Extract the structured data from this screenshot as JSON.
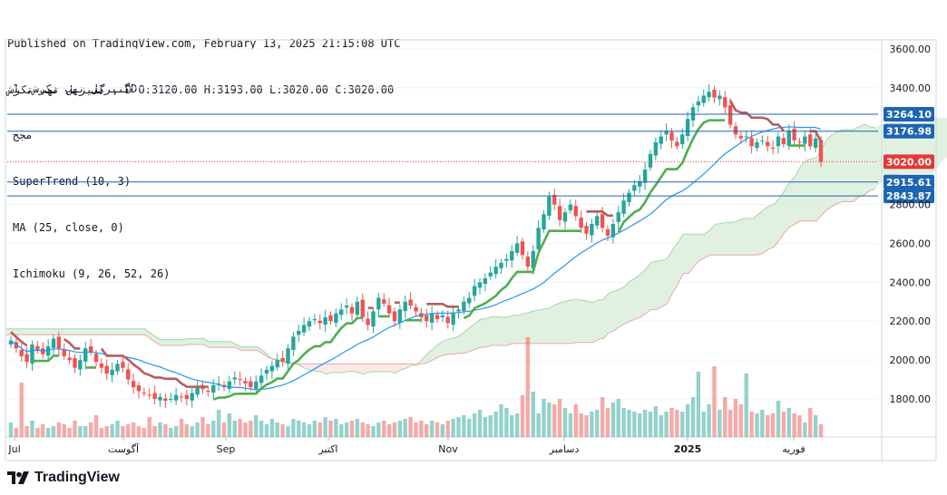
{
  "header": {
    "line1": "Published on TradingView.com, February 13, 2025 21:15:08 UTC",
    "line2": "گنیزیل تهب تکرش , D O:3120.00 H:3193.00 L:3020.00 C:3020.00"
  },
  "legend": {
    "line1": "گنیزیل تهب تکرش, 1D",
    "line2": "مجح",
    "line3": "SuperTrend (10, 3)",
    "line4": "MA (25, close, 0)",
    "line5": "Ichimoku (9, 26, 52, 26)"
  },
  "brand": {
    "name": "TradingView"
  },
  "colors": {
    "up": "#26a69a",
    "down": "#ef5350",
    "ma": "#2196f3",
    "supertrend_up": "#4caf50",
    "supertrend_down": "#b85c5c",
    "cloud_bull": "#c8e6c9",
    "cloud_bear": "#f8d7d5",
    "level": "#1e64b4",
    "price": "#e53935"
  },
  "chart_data": {
    "type": "candlestick",
    "y_ticks": [
      "3600.00",
      "3400.00",
      "2800.00",
      "2600.00",
      "2400.00",
      "2200.00",
      "2000.00",
      "1800.00"
    ],
    "ylim": [
      1600,
      3700
    ],
    "x_labels": [
      "Jul",
      "آگوست",
      "Sep",
      "اکتبر",
      "Nov",
      "دسامبر",
      "2025",
      "فوریه"
    ],
    "levels": [
      {
        "label": "3264.10",
        "value": 3264.1
      },
      {
        "label": "3176.98",
        "value": 3176.98
      },
      {
        "label": "2915.61",
        "value": 2915.61
      },
      {
        "label": "2843.87",
        "value": 2843.87
      }
    ],
    "last_price": {
      "label": "3020.00",
      "value": 3020.0
    },
    "closes": [
      2100,
      2060,
      2020,
      1990,
      2080,
      2050,
      2030,
      2070,
      2110,
      2060,
      2020,
      2000,
      1960,
      2000,
      2060,
      2040,
      1990,
      1960,
      1930,
      1950,
      1980,
      1960,
      1900,
      1860,
      1840,
      1830,
      1820,
      1800,
      1810,
      1790,
      1800,
      1820,
      1810,
      1800,
      1830,
      1860,
      1850,
      1840,
      1870,
      1880,
      1860,
      1890,
      1910,
      1900,
      1880,
      1860,
      1890,
      1920,
      1950,
      1970,
      2000,
      1990,
      2060,
      2120,
      2150,
      2180,
      2200,
      2210,
      2190,
      2220,
      2200,
      2240,
      2260,
      2280,
      2240,
      2300,
      2220,
      2180,
      2250,
      2320,
      2290,
      2240,
      2200,
      2260,
      2300,
      2280,
      2250,
      2220,
      2200,
      2240,
      2210,
      2230,
      2190,
      2240,
      2260,
      2300,
      2320,
      2380,
      2400,
      2420,
      2450,
      2480,
      2500,
      2520,
      2560,
      2600,
      2540,
      2480,
      2560,
      2680,
      2750,
      2840,
      2800,
      2720,
      2760,
      2800,
      2740,
      2680,
      2650,
      2700,
      2740,
      2680,
      2640,
      2700,
      2760,
      2820,
      2860,
      2900,
      2920,
      2980,
      3060,
      3120,
      3150,
      3180,
      3130,
      3100,
      3160,
      3240,
      3300,
      3330,
      3360,
      3380,
      3350,
      3360,
      3300,
      3210,
      3160,
      3140,
      3150,
      3100,
      3120,
      3130,
      3100,
      3090,
      3150,
      3110,
      3180,
      3130,
      3120,
      3150,
      3100,
      3140,
      3020
    ],
    "volumes": [
      8,
      5,
      30,
      6,
      9,
      5,
      7,
      5,
      6,
      8,
      7,
      5,
      9,
      6,
      6,
      8,
      12,
      5,
      6,
      7,
      9,
      6,
      7,
      8,
      6,
      5,
      11,
      6,
      8,
      7,
      5,
      6,
      10,
      7,
      6,
      8,
      11,
      7,
      9,
      15,
      8,
      13,
      9,
      10,
      8,
      9,
      12,
      9,
      7,
      10,
      8,
      7,
      6,
      10,
      9,
      8,
      7,
      9,
      8,
      11,
      9,
      10,
      7,
      8,
      9,
      10,
      8,
      7,
      6,
      8,
      9,
      7,
      8,
      9,
      10,
      11,
      8,
      9,
      7,
      9,
      8,
      7,
      9,
      10,
      11,
      12,
      10,
      13,
      15,
      11,
      12,
      14,
      18,
      16,
      12,
      13,
      23,
      55,
      25,
      13,
      21,
      19,
      18,
      21,
      16,
      13,
      18,
      13,
      12,
      14,
      15,
      22,
      16,
      19,
      21,
      16,
      15,
      14,
      13,
      15,
      14,
      17,
      12,
      14,
      16,
      15,
      14,
      18,
      22,
      36,
      14,
      18,
      39,
      15,
      22,
      15,
      21,
      18,
      35,
      14,
      13,
      15,
      12,
      13,
      20,
      14,
      16,
      13,
      12,
      8,
      16,
      12,
      7
    ]
  }
}
